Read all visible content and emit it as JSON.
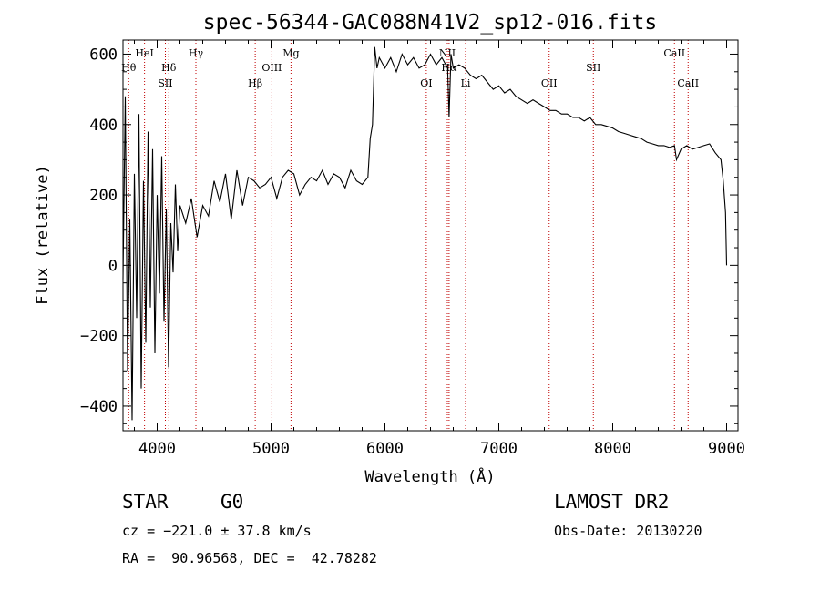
{
  "chart_data": {
    "type": "line",
    "title": "spec-56344-GAC088N41V2_sp12-016.fits",
    "xlabel": "Wavelength (Å)",
    "ylabel": "Flux (relative)",
    "xlim": [
      3700,
      9100
    ],
    "ylim": [
      -470,
      640
    ],
    "xticks": [
      4000,
      5000,
      6000,
      7000,
      8000,
      9000
    ],
    "xtick_labels": [
      "4000",
      "5000",
      "6000",
      "7000",
      "8000",
      "9000"
    ],
    "yticks": [
      -400,
      -200,
      0,
      200,
      400,
      600
    ],
    "ytick_labels": [
      "−400",
      "−200",
      "0",
      "200",
      "400",
      "600"
    ],
    "grid": false,
    "series": [
      {
        "color": "#000000",
        "x": [
          3700,
          3720,
          3740,
          3760,
          3780,
          3800,
          3820,
          3840,
          3860,
          3880,
          3900,
          3920,
          3940,
          3960,
          3980,
          4000,
          4020,
          4040,
          4060,
          4080,
          4100,
          4120,
          4140,
          4160,
          4180,
          4200,
          4250,
          4300,
          4350,
          4400,
          4450,
          4500,
          4550,
          4600,
          4650,
          4700,
          4750,
          4800,
          4850,
          4900,
          4950,
          5000,
          5050,
          5100,
          5150,
          5200,
          5250,
          5300,
          5350,
          5400,
          5450,
          5500,
          5550,
          5600,
          5650,
          5700,
          5750,
          5800,
          5850,
          5870,
          5890,
          5910,
          5930,
          5950,
          6000,
          6050,
          6100,
          6150,
          6200,
          6250,
          6300,
          6350,
          6400,
          6450,
          6500,
          6550,
          6563,
          6580,
          6600,
          6650,
          6700,
          6750,
          6800,
          6850,
          6900,
          6950,
          7000,
          7050,
          7100,
          7150,
          7200,
          7250,
          7300,
          7350,
          7400,
          7450,
          7500,
          7550,
          7600,
          7650,
          7700,
          7750,
          7800,
          7850,
          7900,
          7950,
          8000,
          8050,
          8100,
          8150,
          8200,
          8250,
          8300,
          8350,
          8400,
          8450,
          8500,
          8542,
          8560,
          8600,
          8650,
          8700,
          8750,
          8800,
          8850,
          8900,
          8950,
          8970,
          8990,
          9000
        ],
        "values": [
          -40,
          480,
          -300,
          130,
          -440,
          260,
          -150,
          430,
          -350,
          240,
          -220,
          380,
          -120,
          330,
          -250,
          200,
          -80,
          310,
          -160,
          160,
          -290,
          120,
          -20,
          230,
          40,
          170,
          120,
          190,
          80,
          170,
          140,
          240,
          180,
          260,
          130,
          270,
          170,
          250,
          240,
          220,
          230,
          250,
          190,
          250,
          270,
          260,
          200,
          230,
          250,
          240,
          270,
          230,
          260,
          250,
          220,
          270,
          240,
          230,
          250,
          360,
          400,
          620,
          560,
          590,
          560,
          590,
          550,
          600,
          570,
          590,
          560,
          570,
          600,
          570,
          590,
          560,
          420,
          600,
          560,
          570,
          560,
          540,
          530,
          540,
          520,
          500,
          510,
          490,
          500,
          480,
          470,
          460,
          470,
          460,
          450,
          440,
          440,
          430,
          430,
          420,
          420,
          410,
          420,
          400,
          400,
          395,
          390,
          380,
          375,
          370,
          365,
          360,
          350,
          345,
          340,
          340,
          335,
          340,
          300,
          330,
          340,
          330,
          335,
          340,
          345,
          320,
          300,
          240,
          150,
          0
        ]
      }
    ],
    "lines": [
      {
        "x": 3750,
        "label": "Hθ",
        "row": 2
      },
      {
        "x": 3889,
        "label": "HeI",
        "row": 1
      },
      {
        "x": 4072,
        "label": "SII",
        "row": 3
      },
      {
        "x": 4102,
        "label": "Hδ",
        "row": 2
      },
      {
        "x": 4340,
        "label": "Hγ",
        "row": 1
      },
      {
        "x": 4861,
        "label": "Hβ",
        "row": 3
      },
      {
        "x": 5007,
        "label": "OIII",
        "row": 2
      },
      {
        "x": 5175,
        "label": "Mg",
        "row": 1
      },
      {
        "x": 6363,
        "label": "OI",
        "row": 3
      },
      {
        "x": 6548,
        "label": "NII",
        "row": 1
      },
      {
        "x": 6563,
        "label": "Hα",
        "row": 2
      },
      {
        "x": 6708,
        "label": "Li",
        "row": 3
      },
      {
        "x": 7442,
        "label": "OII",
        "row": 3
      },
      {
        "x": 7830,
        "label": "SII",
        "row": 2
      },
      {
        "x": 8542,
        "label": "CaII",
        "row": 1
      },
      {
        "x": 8662,
        "label": "CaII",
        "row": 3
      }
    ]
  },
  "footer": {
    "object_type": "STAR",
    "spectral_class": "G0",
    "survey": "LAMOST DR2",
    "cz": "cz = −221.0 ± 37.8 km/s",
    "obs_date": "Obs-Date: 20130220",
    "coords": "RA =  90.96568, DEC =  42.78282"
  }
}
